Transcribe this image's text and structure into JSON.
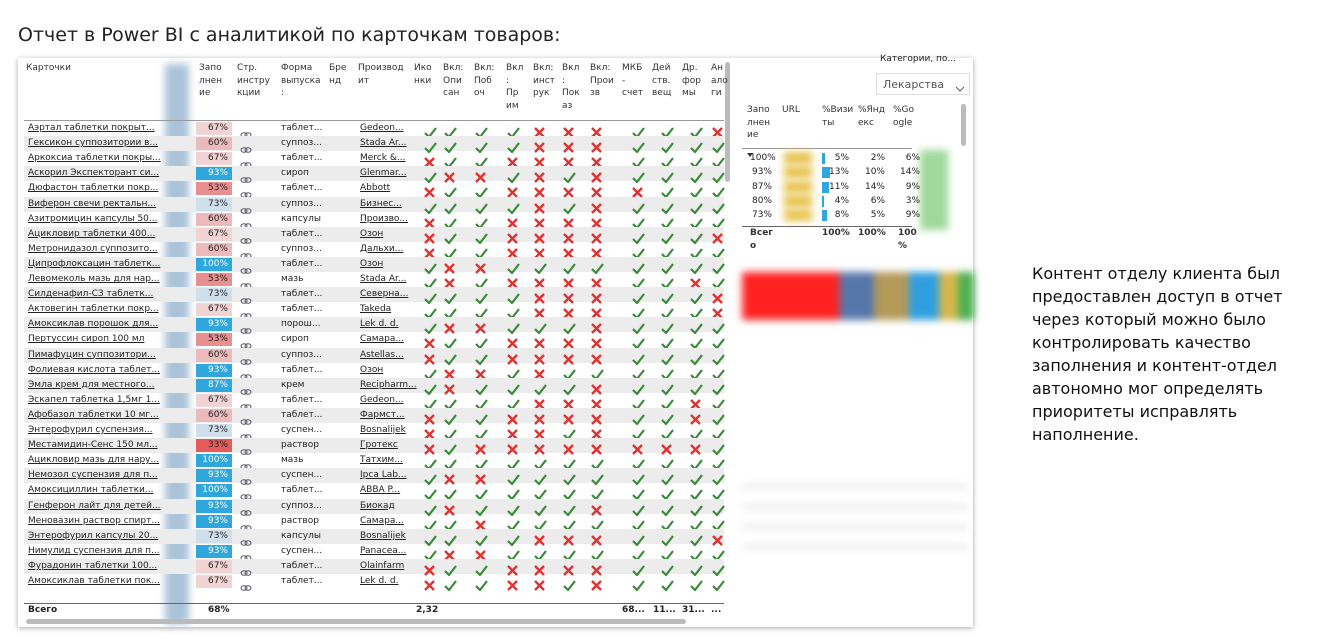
{
  "title": "Отчет в Power BI с аналитикой по карточкам товаров:",
  "report": {
    "columns": [
      "Карточки",
      "Запо\nлнен\nие",
      "Стр.\nинстру\nкции",
      "Форма\nвыпуска\n:",
      "Бре\nнд",
      "Производ\nит",
      "Ико\nнки",
      "Вкл:\nОпи\nсан",
      "Вкл:\nПоб\nоч",
      "Вкл\n:\nПр\nим",
      "Вкл:\nинст\nрук",
      "Вкл\n:\nПок\nаз",
      "Вкл:\nПрои\nзв",
      "МКБ\n-\nсчет",
      "Дей\nств.\nвещ",
      "Др.\nфор\nмы",
      "Ан\nало\nги"
    ],
    "rows": [
      {
        "name": "Аэртал таблетки покрыт...",
        "pct": "67%",
        "form": "таблет...",
        "maker": "Gedeon...",
        "checks": "vvvvxxxvvvx"
      },
      {
        "name": "Гексикон суппозитории в...",
        "pct": "60%",
        "form": "суппоз...",
        "maker": "Stada Ar...",
        "checks": "vvvvxxxvvvv"
      },
      {
        "name": "Аркоксиа таблетки покры...",
        "pct": "67%",
        "form": "таблет...",
        "maker": "Merck &...",
        "checks": "xvvxxxxvvvv"
      },
      {
        "name": "Аскорил Экспекторант си...",
        "pct": "93%",
        "form": "сироп",
        "maker": "Glenmar...",
        "checks": "vxxvxvxvvvv"
      },
      {
        "name": "Дюфастон таблетки покр...",
        "pct": "53%",
        "form": "таблет...",
        "maker": "Abbott",
        "checks": "xvvxxxxxvvv"
      },
      {
        "name": "Виферон свечи ректальн...",
        "pct": "73%",
        "form": "суппоз...",
        "maker": "Бизнес...",
        "checks": "vvvvxvxvvvv"
      },
      {
        "name": "Азитромицин капсулы 50...",
        "pct": "60%",
        "form": "капсулы",
        "maker": "Произво...",
        "checks": "xvvxxxxvvvv"
      },
      {
        "name": "Ацикловир таблетки 400...",
        "pct": "67%",
        "form": "таблет...",
        "maker": "Озон",
        "checks": "xvvxxxxvvvx"
      },
      {
        "name": "Метронидазол суппозито...",
        "pct": "60%",
        "form": "суппоз...",
        "maker": "Дальхи...",
        "checks": "xvvxxxxvvvv"
      },
      {
        "name": "Ципрофлоксацин таблетк...",
        "pct": "100%",
        "form": "таблет...",
        "maker": "Озон",
        "checks": "vxxvvvvvvvv"
      },
      {
        "name": "Левомеколь мазь для нар...",
        "pct": "53%",
        "form": "мазь",
        "maker": "Stada Ar...",
        "checks": "vxvxxxxvvxv"
      },
      {
        "name": "Силденафил-СЗ таблетк...",
        "pct": "73%",
        "form": "таблет...",
        "maker": "Северна...",
        "checks": "vvvvxxxvvvx"
      },
      {
        "name": "Актовегин таблетки покр...",
        "pct": "67%",
        "form": "таблет...",
        "maker": "Takeda",
        "checks": "vvvvxxxvvvx"
      },
      {
        "name": "Амоксиклав порошок для...",
        "pct": "93%",
        "form": "порош...",
        "maker": "Lek d. d.",
        "checks": "vxxvvvxvvvv"
      },
      {
        "name": "Пертуссин сироп 100 мл",
        "pct": "53%",
        "form": "сироп",
        "maker": "Самара...",
        "checks": "xvvxxxxvvvv"
      },
      {
        "name": "Пимафуцин суппозитори...",
        "pct": "60%",
        "form": "суппоз...",
        "maker": "Astellas...",
        "checks": "xvvxxxxvvvv"
      },
      {
        "name": "Фолиевая кислота таблет...",
        "pct": "93%",
        "form": "таблет...",
        "maker": "Озон",
        "checks": "vxxvxvvvvvv"
      },
      {
        "name": "Эмла крем для местного...",
        "pct": "87%",
        "form": "крем",
        "maker": "Recipharm...",
        "checks": "vxvvvvxvvvv"
      },
      {
        "name": "Эскапел таблетка 1,5мг 1...",
        "pct": "67%",
        "form": "таблет...",
        "maker": "Gedeon...",
        "checks": "vvvvxxxvvxv"
      },
      {
        "name": "Афобазол таблетки 10 мг...",
        "pct": "60%",
        "form": "таблет...",
        "maker": "Фармст...",
        "checks": "xvvxxxxvvxv"
      },
      {
        "name": "Энтерофурил суспензия...",
        "pct": "73%",
        "form": "суспен...",
        "maker": "Bosnalijek",
        "checks": "xvvxxvxvvvv"
      },
      {
        "name": "Местамидин-Сенс 150 мл...",
        "pct": "33%",
        "form": "раствор",
        "maker": "Гротекс",
        "checks": "xvxxxxxxxxv"
      },
      {
        "name": "Ацикловир мазь для нару...",
        "pct": "100%",
        "form": "мазь",
        "maker": "Татхим...",
        "checks": "vvvvvvvvvvv"
      },
      {
        "name": "Немозол суспензия для п...",
        "pct": "93%",
        "form": "суспен...",
        "maker": "Ipca Lab...",
        "checks": "vxxvvvvvvvv"
      },
      {
        "name": "Амоксициллин таблетки...",
        "pct": "100%",
        "form": "таблет...",
        "maker": "ABBA P...",
        "checks": "vvvvvvvvvvv"
      },
      {
        "name": "Генферон лайт для детей...",
        "pct": "93%",
        "form": "суппоз...",
        "maker": "Биокад",
        "checks": "vxvvvvxvvvv"
      },
      {
        "name": "Меновазин раствор спирт...",
        "pct": "93%",
        "form": "раствор",
        "maker": "Самара...",
        "checks": "vvxvvvvvvvv"
      },
      {
        "name": "Энтерофурил капсулы 20...",
        "pct": "73%",
        "form": "капсулы",
        "maker": "Bosnalijek",
        "checks": "vvvvxxxvvvx"
      },
      {
        "name": "Нимулид суспензия для п...",
        "pct": "93%",
        "form": "суспен...",
        "maker": "Panacea...",
        "checks": "vxxvvvvvvvv"
      },
      {
        "name": "Фурадонин таблетки 100...",
        "pct": "67%",
        "form": "таблет...",
        "maker": "Olainfarm",
        "checks": "xvvxxxxvvvv"
      },
      {
        "name": "Амоксиклав таблетки пок...",
        "pct": "67%",
        "form": "таблет...",
        "maker": "Lek d. d.",
        "checks": "xvvxxvxvvvv"
      }
    ],
    "totals": {
      "label": "Всего",
      "pct": "68%",
      "icons": "2,32",
      "mkb": "68...",
      "subst": "11...",
      "forms": "31...",
      "analogs": "..."
    }
  },
  "side": {
    "slicer_label": "Категории, по...",
    "slicer_value": "Лекарства",
    "columns": [
      "Запо\nлнен\nие",
      "URL",
      "%Визи\nты",
      "%Янд\nекс",
      "%Go\nogle"
    ],
    "rows": [
      [
        "100%",
        "5%",
        "2%",
        "6%"
      ],
      [
        "93%",
        "13%",
        "10%",
        "14%"
      ],
      [
        "87%",
        "11%",
        "14%",
        "9%"
      ],
      [
        "80%",
        "4%",
        "6%",
        "3%"
      ],
      [
        "73%",
        "8%",
        "5%",
        "9%"
      ]
    ],
    "totals": [
      "Всег\nо",
      "100%",
      "100%",
      "100\n%"
    ]
  },
  "note": "Контент отделу клиента был предоставлен доступ в отчет через который можно было контролировать качество заполнения и контент-отдел автономно мог определять приоритеты исправлять наполнение."
}
